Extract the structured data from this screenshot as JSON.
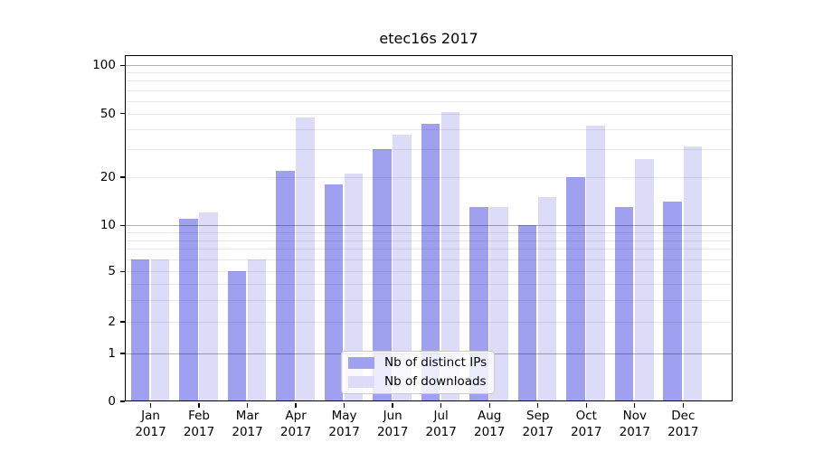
{
  "title": "etec16s 2017",
  "chart_data": {
    "type": "bar",
    "title": "etec16s 2017",
    "categories": [
      "Jan",
      "Feb",
      "Mar",
      "Apr",
      "May",
      "Jun",
      "Jul",
      "Aug",
      "Sep",
      "Oct",
      "Nov",
      "Dec"
    ],
    "year_label": "2017",
    "series": [
      {
        "name": "Nb of distinct IPs",
        "key": "distinct-ips",
        "color": "#a0a0f0",
        "values": [
          6,
          11,
          5,
          22,
          18,
          30,
          43,
          13,
          10,
          20,
          13,
          14
        ]
      },
      {
        "name": "Nb of downloads",
        "key": "downloads",
        "color": "#dcdcf8",
        "values": [
          6,
          12,
          6,
          47,
          21,
          37,
          51,
          13,
          15,
          42,
          26,
          31
        ]
      }
    ],
    "xlabel": "",
    "ylabel": "",
    "yscale": "log-like (symlog with linear segment 0-1)",
    "ylim": [
      0,
      112
    ],
    "y_tick_labels": [
      "100",
      "50",
      "20",
      "10",
      "5",
      "2",
      "1",
      "0"
    ],
    "y_major_gridlines": [
      1,
      10,
      100
    ],
    "y_minor_gridlines": [
      2,
      3,
      4,
      5,
      6,
      7,
      8,
      9,
      20,
      30,
      40,
      50,
      60,
      70,
      80,
      90
    ],
    "grid": "horizontal, drawn over bars",
    "legend_position": "lower center"
  }
}
